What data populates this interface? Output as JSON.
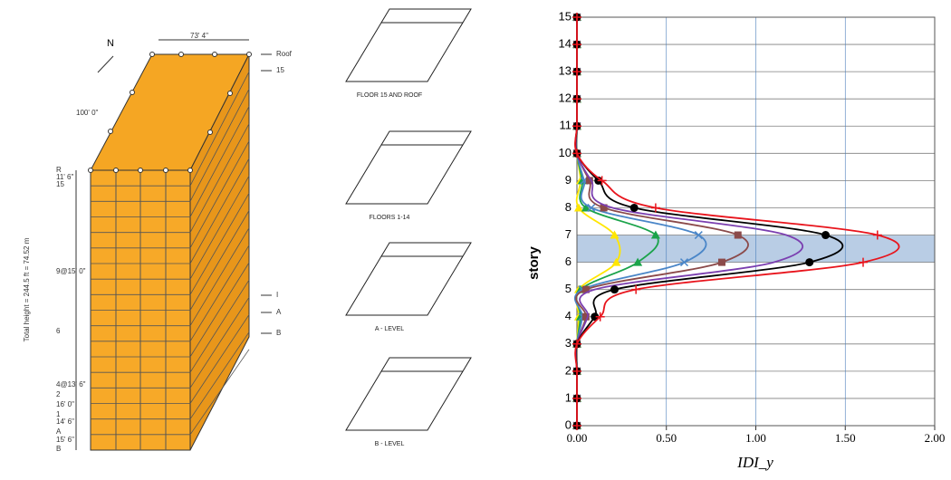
{
  "diagram": {
    "north": "N",
    "width_dim": "73' 4\"",
    "depth_dim": "100' 0\"",
    "right_labels": [
      "Roof",
      "15",
      "I",
      "A",
      "B"
    ],
    "left_labels": [
      "R",
      "11' 6\"",
      "15",
      "9@15' 0\"",
      "6",
      "4@13' 6\"",
      "2",
      "16' 0\"",
      "1",
      "14' 6\"",
      "A",
      "15' 6\"",
      "B"
    ],
    "height_note": "Total height = 244.5 ft = 74.52 m",
    "plans": [
      "FLOOR 15 AND ROOF",
      "FLOORS 1-14",
      "A - LEVEL",
      "B - LEVEL"
    ]
  },
  "chart_data": {
    "type": "line",
    "xlabel": "IDI_y",
    "ylabel": "story",
    "y": [
      0,
      1,
      2,
      3,
      4,
      5,
      6,
      7,
      8,
      9,
      10,
      11,
      12,
      13,
      14,
      15
    ],
    "series": [
      {
        "color": "#ffe600",
        "marker": "triangle",
        "values": [
          0,
          0,
          0,
          0,
          0.01,
          0.01,
          0.22,
          0.21,
          0.01,
          0.02,
          0,
          0,
          0,
          0,
          0,
          0
        ]
      },
      {
        "color": "#1aa34a",
        "marker": "triangle",
        "values": [
          0,
          0,
          0,
          0,
          0.02,
          0.02,
          0.34,
          0.44,
          0.05,
          0.03,
          0,
          0,
          0,
          0,
          0,
          0
        ]
      },
      {
        "color": "#4a86c8",
        "marker": "x",
        "values": [
          0,
          0,
          0,
          0,
          0.03,
          0.03,
          0.6,
          0.68,
          0.08,
          0.04,
          0,
          0,
          0,
          0,
          0,
          0
        ]
      },
      {
        "color": "#8b4a4a",
        "marker": "square",
        "values": [
          0,
          0,
          0,
          0,
          0.05,
          0.05,
          0.81,
          0.9,
          0.15,
          0.07,
          0,
          0,
          0,
          0,
          0,
          0
        ]
      },
      {
        "color": "#7b3fb0",
        "marker": "none",
        "values": [
          0,
          0,
          0,
          0,
          0.06,
          0.1,
          1.1,
          1.17,
          0.2,
          0.08,
          0,
          0,
          0,
          0,
          0,
          0
        ]
      },
      {
        "color": "#000000",
        "marker": "circle",
        "values": [
          0,
          0,
          0,
          0,
          0.1,
          0.21,
          1.3,
          1.39,
          0.32,
          0.12,
          0,
          0,
          0,
          0,
          0,
          0
        ]
      },
      {
        "color": "#e8141c",
        "marker": "plus",
        "values": [
          0,
          0,
          0,
          0,
          0.13,
          0.33,
          1.6,
          1.68,
          0.44,
          0.14,
          0,
          0,
          0,
          0,
          0,
          0
        ]
      }
    ],
    "highlight": [
      6,
      7
    ],
    "highlight_color": "#b9cde5",
    "xlim": [
      0,
      2
    ],
    "xticks": [
      {
        "value": 0,
        "label": "0.00"
      },
      {
        "value": 0.5,
        "label": "0.50"
      },
      {
        "value": 1,
        "label": "1.00"
      },
      {
        "value": 1.5,
        "label": "1.50"
      },
      {
        "value": 2,
        "label": "2.00"
      }
    ],
    "ylim": [
      0,
      15
    ],
    "yticks": [
      0,
      1,
      2,
      3,
      4,
      5,
      6,
      7,
      8,
      9,
      10,
      11,
      12,
      13,
      14,
      15
    ],
    "grid": true
  }
}
